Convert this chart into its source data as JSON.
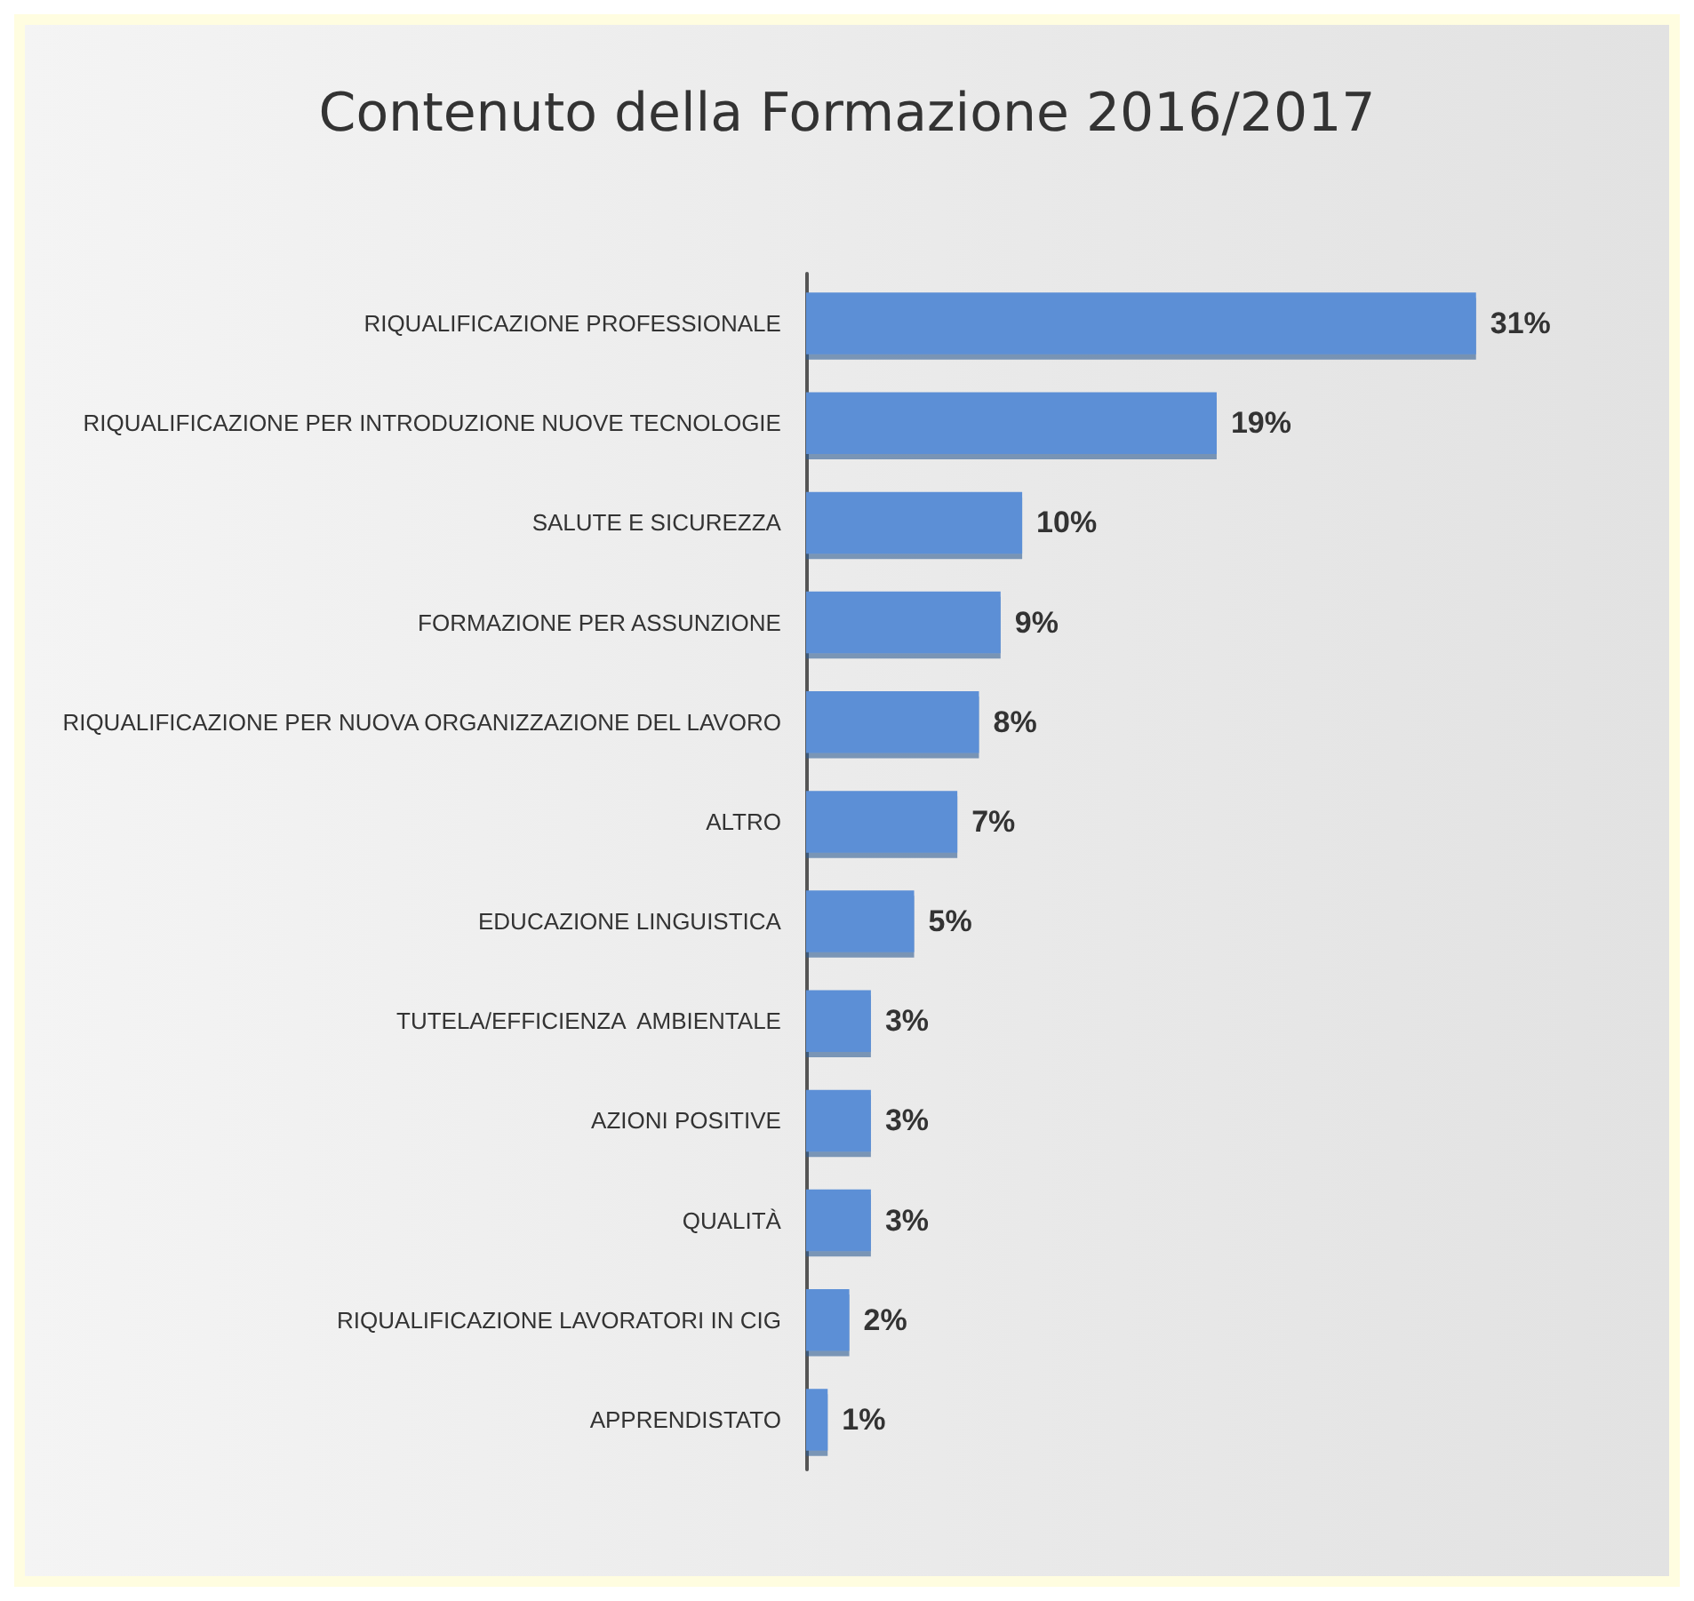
{
  "chart_data": {
    "type": "bar",
    "orientation": "horizontal",
    "title": "Contenuto della Formazione 2016/2017",
    "categories": [
      "RIQUALIFICAZIONE PROFESSIONALE",
      "RIQUALIFICAZIONE PER INTRODUZIONE NUOVE TECNOLOGIE",
      "SALUTE E SICUREZZA",
      "FORMAZIONE PER ASSUNZIONE",
      "RIQUALIFICAZIONE PER NUOVA ORGANIZZAZIONE DEL LAVORO",
      "ALTRO",
      "EDUCAZIONE LINGUISTICA",
      "TUTELA/EFFICIENZA  AMBIENTALE",
      "AZIONI POSITIVE",
      "QUALITÀ",
      "RIQUALIFICAZIONE LAVORATORI IN CIG",
      "APPRENDISTATO"
    ],
    "values": [
      31,
      19,
      10,
      9,
      8,
      7,
      5,
      3,
      3,
      3,
      2,
      1
    ],
    "value_labels": [
      "31%",
      "19%",
      "10%",
      "9%",
      "8%",
      "7%",
      "5%",
      "3%",
      "3%",
      "3%",
      "2%",
      "1%"
    ],
    "color": "#5b8fd6"
  }
}
